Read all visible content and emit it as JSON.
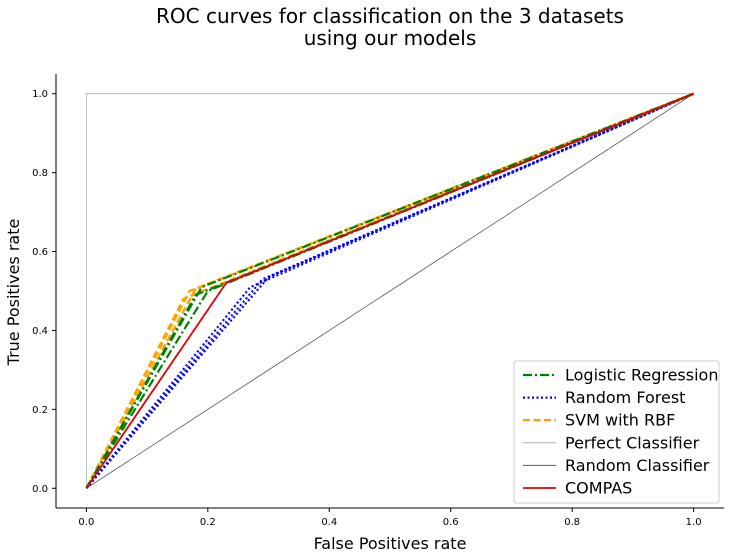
{
  "chart_data": {
    "type": "line",
    "title_line1": "ROC curves for classification on the 3 datasets",
    "title_line2": "using our models",
    "xlabel": "False Positives rate",
    "ylabel": "True Positives rate",
    "xlim": [
      -0.05,
      1.05
    ],
    "ylim": [
      -0.05,
      1.05
    ],
    "xticks": [
      "0.0",
      "0.2",
      "0.4",
      "0.6",
      "0.8",
      "1.0"
    ],
    "yticks": [
      "0.0",
      "0.2",
      "0.4",
      "0.6",
      "0.8",
      "1.0"
    ],
    "grid": false,
    "legend_position": "lower-right",
    "series": [
      {
        "name": "Logistic Regression",
        "color": "#008000",
        "style": "dashdot",
        "curves": [
          {
            "x": [
              0,
              0.18,
              1
            ],
            "y": [
              0,
              0.49,
              1
            ]
          },
          {
            "x": [
              0,
              0.19,
              1
            ],
            "y": [
              0,
              0.51,
              1
            ]
          },
          {
            "x": [
              0,
              0.2,
              1
            ],
            "y": [
              0,
              0.5,
              1
            ]
          }
        ]
      },
      {
        "name": "Random Forest",
        "color": "#0000ff",
        "style": "dotted",
        "curves": [
          {
            "x": [
              0,
              0.27,
              1
            ],
            "y": [
              0,
              0.51,
              1
            ]
          },
          {
            "x": [
              0,
              0.29,
              1
            ],
            "y": [
              0,
              0.53,
              1
            ]
          },
          {
            "x": [
              0,
              0.3,
              1
            ],
            "y": [
              0,
              0.535,
              1
            ]
          }
        ]
      },
      {
        "name": "SVM with RBF",
        "color": "#ffa500",
        "style": "dashed",
        "curves": [
          {
            "x": [
              0,
              0.16,
              1
            ],
            "y": [
              0,
              0.48,
              1
            ]
          },
          {
            "x": [
              0,
              0.17,
              1
            ],
            "y": [
              0,
              0.5,
              1
            ]
          },
          {
            "x": [
              0,
              0.18,
              1
            ],
            "y": [
              0,
              0.505,
              1
            ]
          }
        ]
      },
      {
        "name": "Perfect Classifier",
        "color": "#b0b0b0",
        "style": "thin",
        "curves": [
          {
            "x": [
              0,
              0,
              1
            ],
            "y": [
              0,
              1,
              1
            ]
          }
        ]
      },
      {
        "name": "Random Classifier",
        "color": "#555555",
        "style": "thin",
        "curves": [
          {
            "x": [
              0,
              1
            ],
            "y": [
              0,
              1
            ]
          }
        ]
      },
      {
        "name": "COMPAS",
        "color": "#e00000",
        "style": "solid",
        "curves": [
          {
            "x": [
              0,
              0.23,
              1
            ],
            "y": [
              0,
              0.52,
              1
            ]
          }
        ]
      }
    ]
  }
}
